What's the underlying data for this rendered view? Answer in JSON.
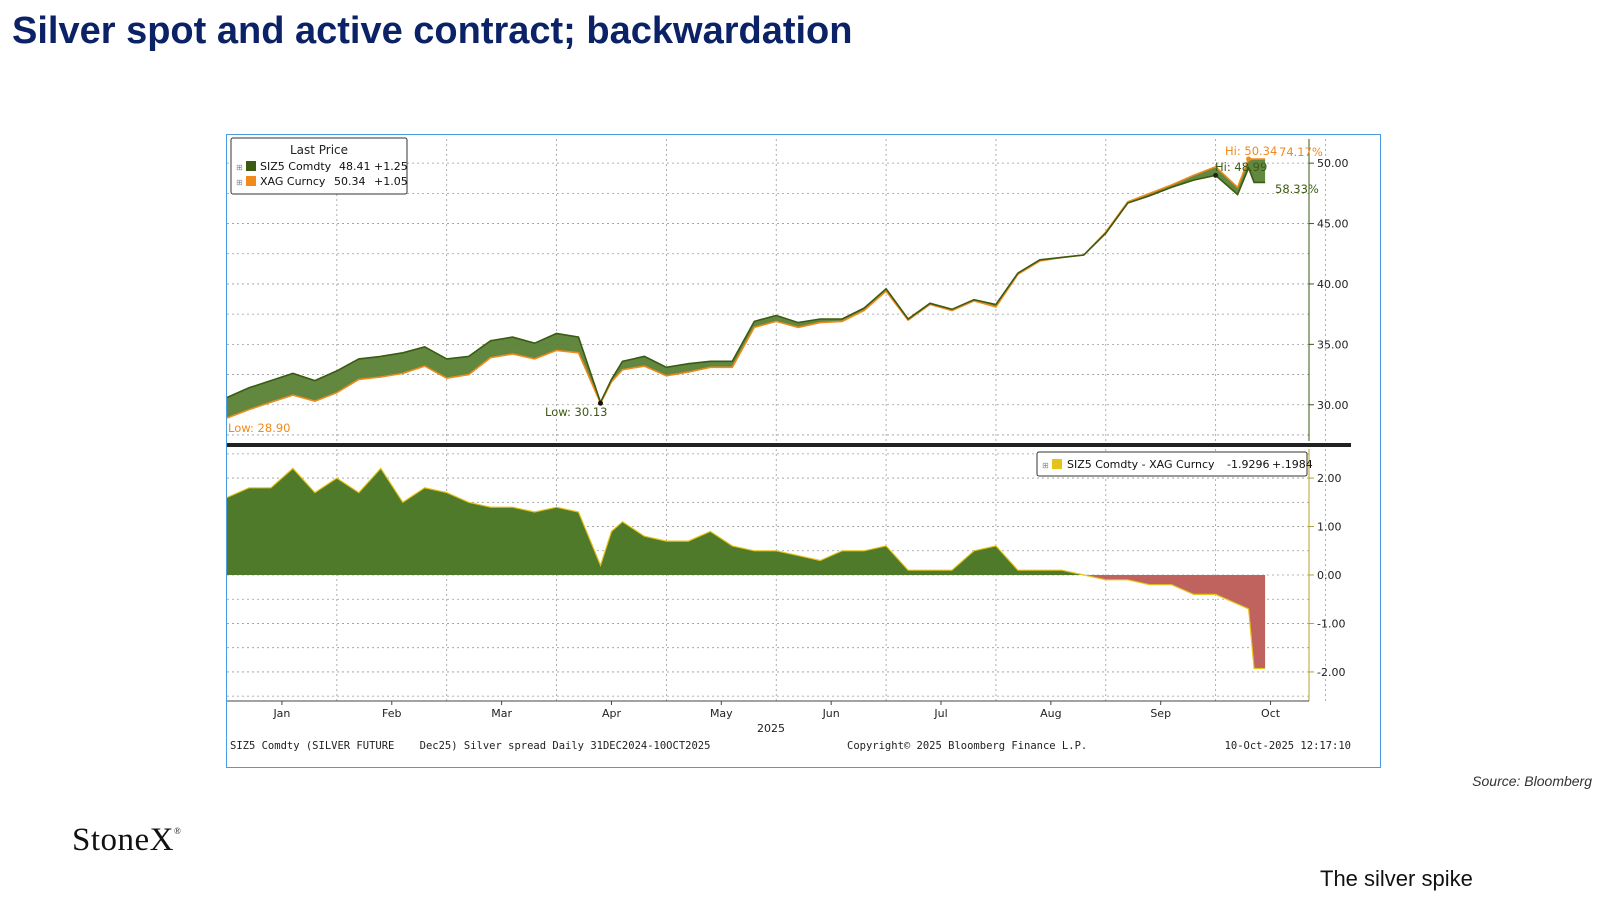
{
  "slide": {
    "title": "Silver spot and active contract; backwardation",
    "source": "Source: Bloomberg",
    "logo_text": "StoneX",
    "logo_mark": "®",
    "footer": "The silver spike"
  },
  "chart_data": [
    {
      "type": "line",
      "legend_title": "Last Price",
      "legend_placement": "top-left",
      "x_axis_months": [
        "Jan",
        "Feb",
        "Mar",
        "Apr",
        "May",
        "Jun",
        "Jul",
        "Aug",
        "Sep",
        "Oct"
      ],
      "x_axis_year": "2025",
      "x_range_months": [
        -0.5,
        9.35
      ],
      "ylim": [
        27,
        52
      ],
      "yticks": [
        "30.00",
        "35.00",
        "40.00",
        "45.00",
        "50.00"
      ],
      "ytick_values": [
        30,
        35,
        40,
        45,
        50
      ],
      "grid": true,
      "x": [
        -0.5,
        -0.3,
        -0.1,
        0.1,
        0.3,
        0.5,
        0.7,
        0.9,
        1.1,
        1.3,
        1.5,
        1.7,
        1.9,
        2.1,
        2.3,
        2.5,
        2.7,
        2.9,
        3.0,
        3.1,
        3.3,
        3.5,
        3.7,
        3.9,
        4.1,
        4.3,
        4.5,
        4.7,
        4.9,
        5.1,
        5.3,
        5.5,
        5.7,
        5.9,
        6.1,
        6.3,
        6.5,
        6.7,
        6.9,
        7.1,
        7.3,
        7.5,
        7.7,
        7.9,
        8.1,
        8.3,
        8.5,
        8.7,
        8.8,
        8.85,
        8.9,
        8.95
      ],
      "series": [
        {
          "name": "SIZ5 Comdty",
          "last": "48.41",
          "change": "+1.25",
          "color": "#3b5a12",
          "values": [
            30.6,
            31.4,
            32.0,
            32.6,
            32.0,
            32.8,
            33.8,
            34.0,
            34.3,
            34.8,
            33.8,
            34.0,
            35.3,
            35.6,
            35.1,
            35.9,
            35.6,
            30.2,
            32.1,
            33.6,
            34.0,
            33.1,
            33.4,
            33.6,
            33.6,
            36.9,
            37.4,
            36.8,
            37.1,
            37.1,
            38.0,
            39.6,
            37.1,
            38.4,
            37.9,
            38.7,
            38.3,
            40.9,
            42.0,
            42.2,
            42.4,
            44.2,
            46.7,
            47.3,
            48.0,
            48.6,
            48.99,
            47.4,
            49.6,
            48.41,
            48.41,
            48.41
          ]
        },
        {
          "name": "XAG Curncy",
          "last": "50.34",
          "change": "+1.05",
          "color": "#f08a1c",
          "values": [
            28.9,
            29.6,
            30.2,
            30.8,
            30.3,
            31.0,
            32.1,
            32.3,
            32.6,
            33.2,
            32.2,
            32.5,
            33.9,
            34.2,
            33.8,
            34.5,
            34.3,
            30.13,
            31.9,
            32.9,
            33.2,
            32.4,
            32.7,
            33.1,
            33.1,
            36.4,
            36.9,
            36.4,
            36.8,
            36.9,
            37.8,
            39.4,
            37.0,
            38.3,
            37.8,
            38.6,
            38.1,
            40.8,
            41.9,
            42.2,
            42.4,
            44.3,
            46.8,
            47.5,
            48.2,
            49.0,
            49.7,
            48.0,
            50.34,
            50.34,
            50.34,
            50.34
          ]
        }
      ],
      "annotations": [
        {
          "text": "Low: 28.90",
          "color": "#f08a1c"
        },
        {
          "text": "Low: 30.13",
          "color": "#3b5a12"
        },
        {
          "text": "Hi: 50.34",
          "color": "#f08a1c"
        },
        {
          "text": "74.17%",
          "color": "#f08a1c"
        },
        {
          "text": "Hi: 48.99",
          "color": "#3b5a12"
        },
        {
          "text": "58.33%",
          "color": "#3b5a12"
        }
      ]
    },
    {
      "type": "area",
      "legend_placement": "top-right",
      "series": [
        {
          "name": "SIZ5 Comdty - XAG Curncy",
          "last": "-1.9296",
          "change": "+.1984",
          "color": "#e5c319",
          "positive_fill": "#4e7a2a",
          "negative_fill": "#c0625e",
          "values": [
            1.6,
            1.8,
            1.8,
            2.2,
            1.7,
            2.0,
            1.7,
            2.2,
            1.5,
            1.8,
            1.7,
            1.5,
            1.4,
            1.4,
            1.3,
            1.4,
            1.3,
            0.2,
            0.9,
            1.1,
            0.8,
            0.7,
            0.7,
            0.9,
            0.6,
            0.5,
            0.5,
            0.4,
            0.3,
            0.5,
            0.5,
            0.6,
            0.1,
            0.1,
            0.1,
            0.5,
            0.6,
            0.1,
            0.1,
            0.1,
            0.0,
            -0.1,
            -0.1,
            -0.2,
            -0.2,
            -0.4,
            -0.4,
            -0.6,
            -0.7,
            -1.9296,
            -1.9296,
            -1.9296
          ]
        }
      ],
      "ylim": [
        -2.6,
        2.6
      ],
      "yticks": [
        "-2.00",
        "-1.00",
        "0.00",
        "1.00",
        "2.00"
      ],
      "ytick_values": [
        -2,
        -1,
        0,
        1,
        2
      ],
      "grid": true
    }
  ],
  "chart_footer": {
    "security": "SIZ5 Comdty (SILVER FUTURE    Dec25) Silver spread Daily 31DEC2024-10OCT2025",
    "copyright": "Copyright© 2025 Bloomberg Finance L.P.",
    "timestamp": "10-Oct-2025 12:17:10"
  }
}
